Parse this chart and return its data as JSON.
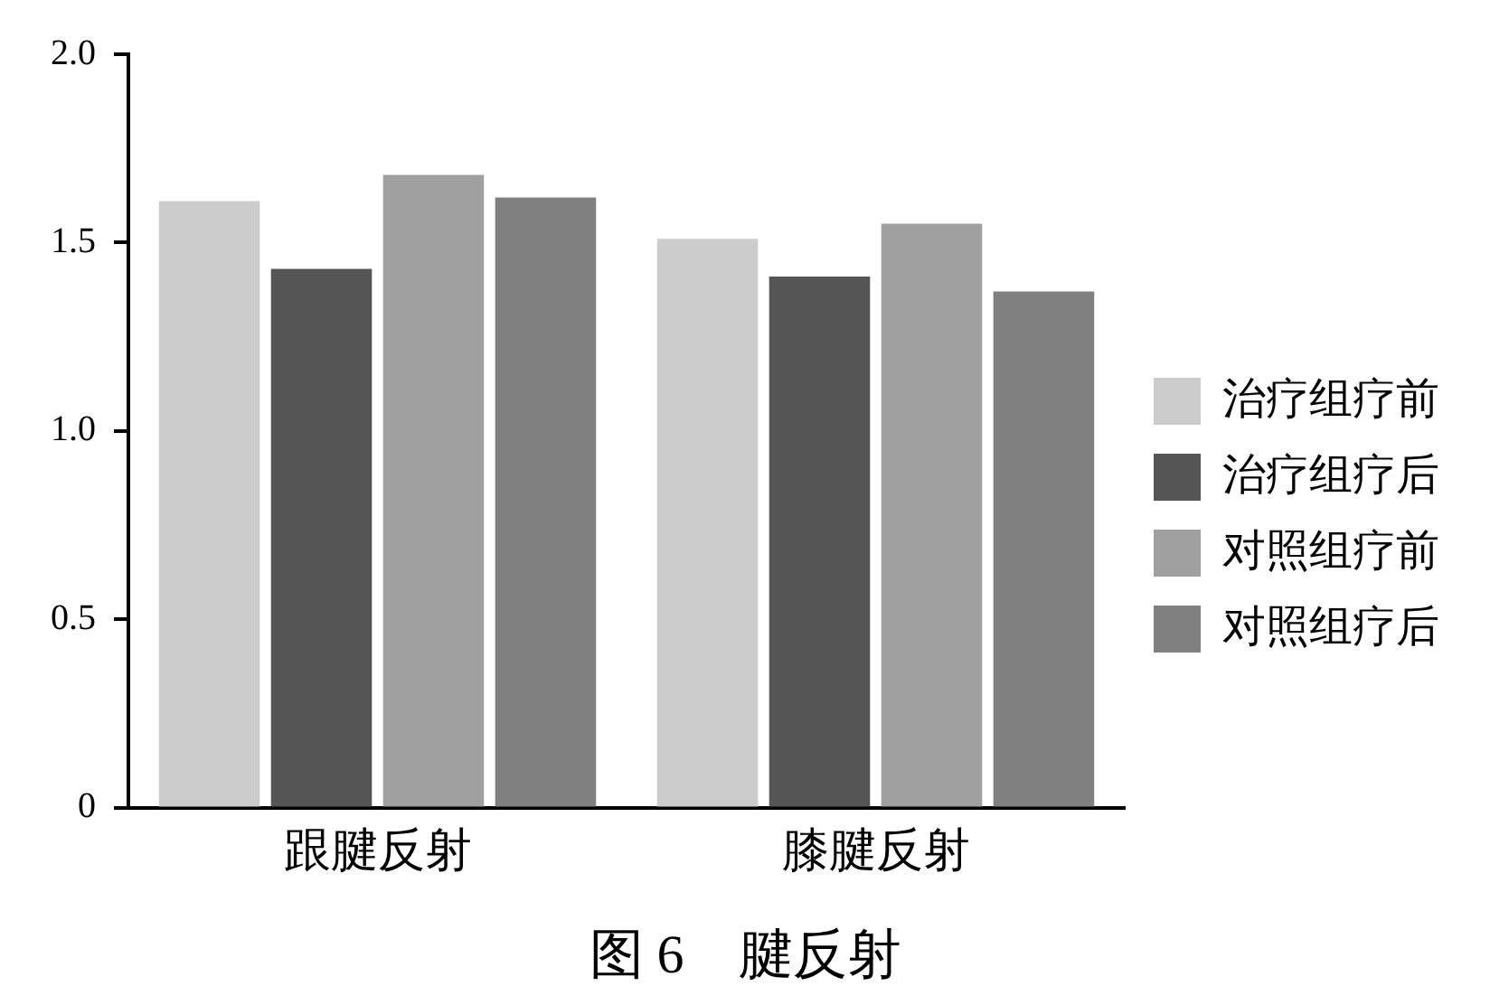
{
  "chart_data": {
    "type": "bar",
    "title": "图 6　腱反射",
    "categories": [
      "跟腱反射",
      "膝腱反射"
    ],
    "series": [
      {
        "name": "治疗组疗前",
        "color": "#cccccc",
        "values": [
          1.61,
          1.51
        ]
      },
      {
        "name": "治疗组疗后",
        "color": "#555555",
        "values": [
          1.43,
          1.41
        ]
      },
      {
        "name": "对照组疗前",
        "color": "#a0a0a0",
        "values": [
          1.68,
          1.55
        ]
      },
      {
        "name": "对照组疗后",
        "color": "#808080",
        "values": [
          1.62,
          1.37
        ]
      }
    ],
    "ylim": [
      0,
      2.0
    ],
    "yticks": [
      {
        "value": 0,
        "label": "0"
      },
      {
        "value": 0.5,
        "label": "0.5"
      },
      {
        "value": 1,
        "label": "1.0"
      },
      {
        "value": 1.5,
        "label": "1.5"
      },
      {
        "value": 2,
        "label": "2.0"
      }
    ],
    "grid": false,
    "legend": "right"
  }
}
